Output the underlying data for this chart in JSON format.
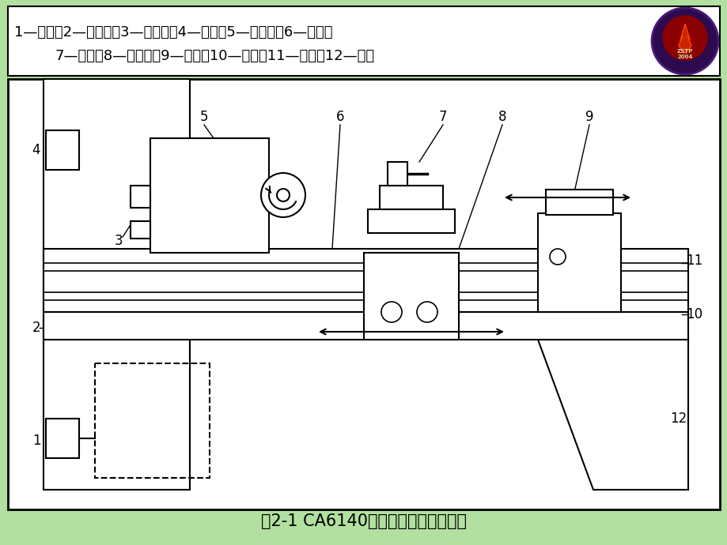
{
  "bg_color": "#b2e0a0",
  "white_area_color": "#ffffff",
  "line_color": "#000000",
  "title_text": "图2-1 CA6140普通车床的结构示意图",
  "header_line1": "1—带轮；2—进给箱；3—挂轮架；4—带轮；5—主轴箱；6—床身；",
  "header_line2": "7—刀架；8—溜板箱；9—尾座；10—丝杠；11—光杠；12—床腿",
  "header_fontsize": 13,
  "title_fontsize": 15,
  "label_fontsize": 12
}
